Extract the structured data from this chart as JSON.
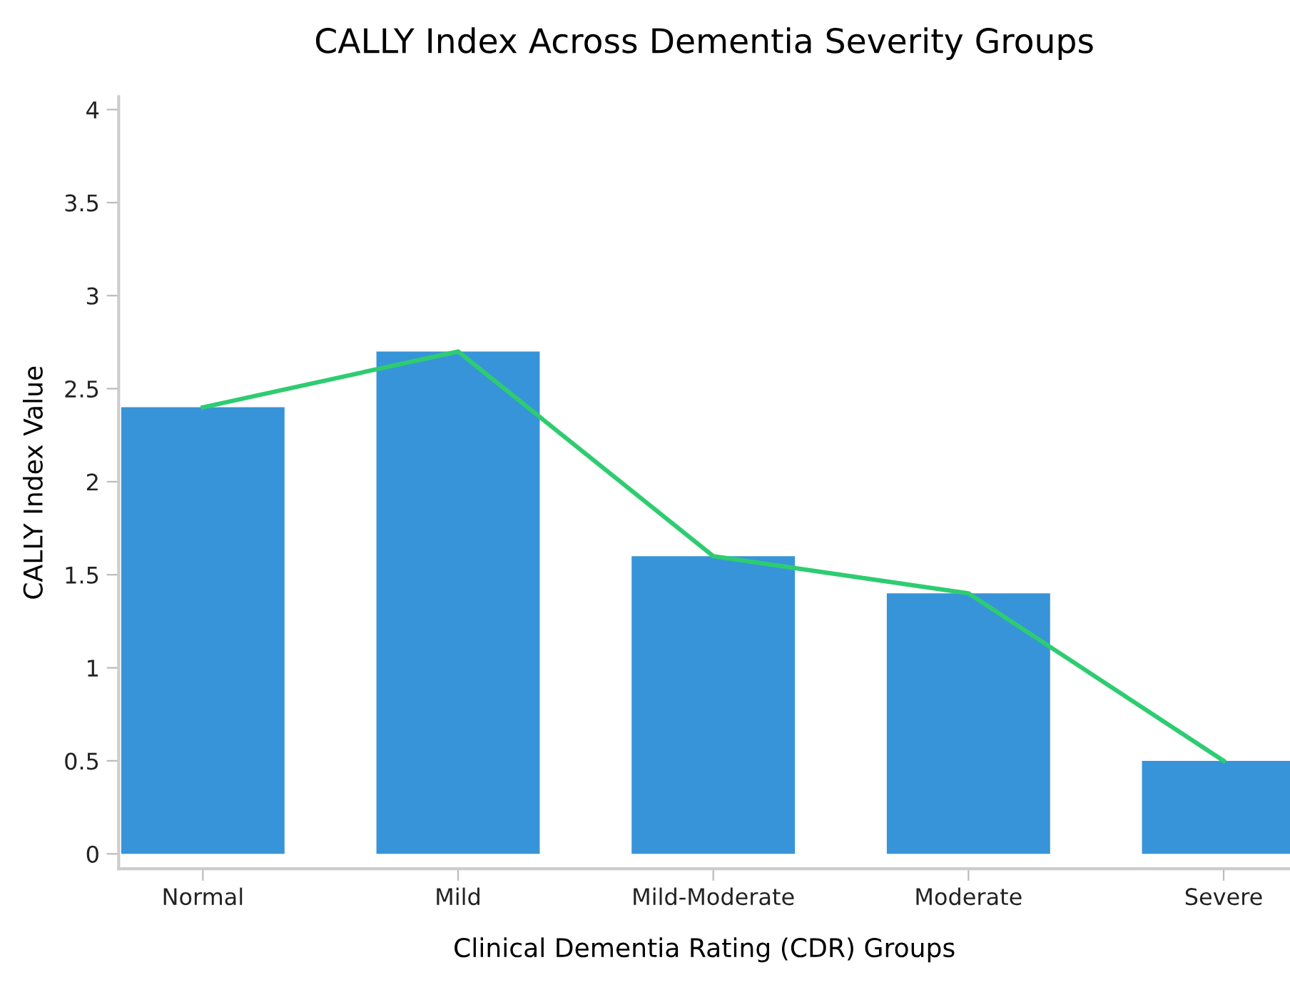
{
  "chart_data": {
    "type": "bar",
    "title": "CALLY Index Across Dementia Severity Groups",
    "xlabel": "Clinical Dementia Rating (CDR) Groups",
    "ylabel": "CALLY Index Value",
    "categories": [
      "Normal",
      "Mild",
      "Mild-Moderate",
      "Moderate",
      "Severe"
    ],
    "series": [
      {
        "color": "#3894d8",
        "values": [
          2.4,
          2.7,
          1.6,
          1.4,
          0.5
        ]
      },
      {
        "type": "line",
        "color": "#2ecc71",
        "values": [
          2.4,
          2.7,
          1.6,
          1.4,
          0.5
        ]
      }
    ],
    "ylim": [
      -0.08,
      4.07
    ],
    "yticks": [
      0,
      0.5,
      1,
      1.5,
      2,
      2.5,
      3,
      3.5,
      4
    ],
    "grid": false,
    "legend": false,
    "marker": "none",
    "line_style": "solid"
  }
}
